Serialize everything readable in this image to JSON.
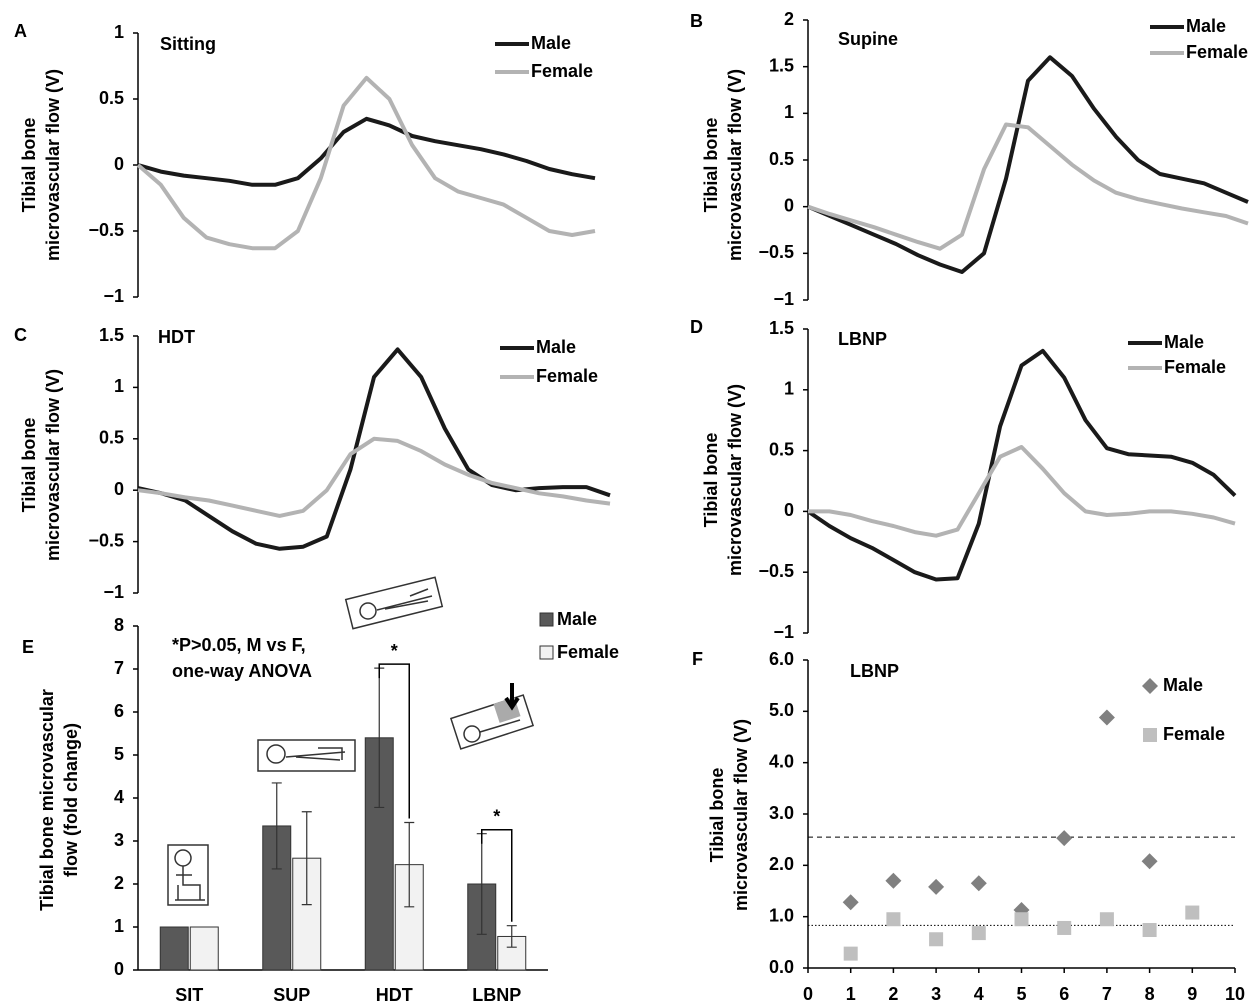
{
  "chart_data": [
    {
      "type": "line",
      "panel": "A",
      "title": "Sitting",
      "ylabel": [
        "Tibial bone",
        "microvascular flow (V)"
      ],
      "ylim": [
        -1,
        1
      ],
      "yticks": [
        {
          "value": -1,
          "label": "−1"
        },
        {
          "value": -0.5,
          "label": "−0.5"
        },
        0,
        0.5,
        1
      ],
      "series": [
        {
          "name": "Male",
          "color": "#1a1a1a",
          "values": [
            0,
            -0.05,
            -0.08,
            -0.1,
            -0.12,
            -0.15,
            -0.15,
            -0.1,
            0.05,
            0.25,
            0.35,
            0.3,
            0.22,
            0.18,
            0.15,
            0.12,
            0.08,
            0.03,
            -0.03,
            -0.07,
            -0.1
          ]
        },
        {
          "name": "Female",
          "color": "#b3b3b3",
          "values": [
            0,
            -0.15,
            -0.4,
            -0.55,
            -0.6,
            -0.63,
            -0.63,
            -0.5,
            -0.1,
            0.45,
            0.66,
            0.5,
            0.15,
            -0.1,
            -0.2,
            -0.25,
            -0.3,
            -0.4,
            -0.5,
            -0.53,
            -0.5
          ]
        }
      ]
    },
    {
      "type": "line",
      "panel": "B",
      "title": "Supine",
      "ylabel": [
        "Tibial bone",
        "microvascular flow (V)"
      ],
      "ylim": [
        -1,
        2
      ],
      "yticks": [
        {
          "value": -1,
          "label": "−1"
        },
        {
          "value": -0.5,
          "label": "−0.5"
        },
        0,
        0.5,
        1,
        1.5,
        2
      ],
      "series": [
        {
          "name": "Male",
          "color": "#1a1a1a",
          "values": [
            0,
            -0.1,
            -0.2,
            -0.3,
            -0.4,
            -0.52,
            -0.62,
            -0.7,
            -0.5,
            0.3,
            1.35,
            1.6,
            1.4,
            1.05,
            0.75,
            0.5,
            0.35,
            0.3,
            0.25,
            0.15,
            0.05
          ]
        },
        {
          "name": "Female",
          "color": "#b3b3b3",
          "values": [
            0,
            -0.08,
            -0.15,
            -0.22,
            -0.3,
            -0.38,
            -0.45,
            -0.3,
            0.4,
            0.88,
            0.85,
            0.65,
            0.45,
            0.28,
            0.15,
            0.08,
            0.03,
            -0.02,
            -0.06,
            -0.1,
            -0.18
          ]
        }
      ]
    },
    {
      "type": "line",
      "panel": "C",
      "title": "HDT",
      "ylabel": [
        "Tibial bone",
        "microvascular flow (V)"
      ],
      "ylim": [
        -1,
        1.5
      ],
      "yticks": [
        {
          "value": -1,
          "label": "−1"
        },
        {
          "value": -0.5,
          "label": "−0.5"
        },
        0,
        0.5,
        1,
        1.5
      ],
      "series": [
        {
          "name": "Male",
          "color": "#1a1a1a",
          "values": [
            0.02,
            -0.03,
            -0.1,
            -0.25,
            -0.4,
            -0.52,
            -0.57,
            -0.55,
            -0.45,
            0.2,
            1.1,
            1.37,
            1.1,
            0.6,
            0.2,
            0.05,
            0,
            0.02,
            0.03,
            0.03,
            -0.05
          ]
        },
        {
          "name": "Female",
          "color": "#b3b3b3",
          "values": [
            0,
            -0.03,
            -0.07,
            -0.1,
            -0.15,
            -0.2,
            -0.25,
            -0.2,
            0,
            0.35,
            0.5,
            0.48,
            0.38,
            0.25,
            0.15,
            0.07,
            0.02,
            -0.03,
            -0.06,
            -0.1,
            -0.13
          ]
        }
      ]
    },
    {
      "type": "line",
      "panel": "D",
      "title": "LBNP",
      "ylabel": [
        "Tibial bone",
        "microvascular flow (V)"
      ],
      "ylim": [
        -1,
        1.5
      ],
      "yticks": [
        {
          "value": -1,
          "label": "−1"
        },
        {
          "value": -0.5,
          "label": "−0.5"
        },
        0,
        0.5,
        1,
        1.5
      ],
      "series": [
        {
          "name": "Male",
          "color": "#1a1a1a",
          "values": [
            0,
            -0.12,
            -0.22,
            -0.3,
            -0.4,
            -0.5,
            -0.56,
            -0.55,
            -0.1,
            0.7,
            1.2,
            1.32,
            1.1,
            0.75,
            0.52,
            0.47,
            0.46,
            0.45,
            0.4,
            0.3,
            0.13
          ]
        },
        {
          "name": "Female",
          "color": "#b3b3b3",
          "values": [
            0,
            0,
            -0.03,
            -0.08,
            -0.12,
            -0.17,
            -0.2,
            -0.15,
            0.15,
            0.45,
            0.53,
            0.35,
            0.15,
            0,
            -0.03,
            -0.02,
            0,
            0,
            -0.02,
            -0.05,
            -0.1
          ]
        }
      ]
    },
    {
      "type": "bar",
      "panel": "E",
      "ylabel": [
        "Tibial bone  microvascular",
        "flow (fold change)"
      ],
      "annotation": [
        "*P>0.05, M vs F,",
        "one-way ANOVA"
      ],
      "categories": [
        "SIT",
        "SUP",
        "HDT",
        "LBNP"
      ],
      "significance_labels": [
        null,
        null,
        "*",
        "*"
      ],
      "ylim": [
        0,
        8
      ],
      "yticks": [
        0,
        1,
        2,
        3,
        4,
        5,
        6,
        7,
        8
      ],
      "series": [
        {
          "name": "Male",
          "color": "#595959",
          "values": [
            1,
            3.35,
            5.4,
            2.0
          ],
          "errors": [
            0,
            1.0,
            1.62,
            1.17
          ]
        },
        {
          "name": "Female",
          "color": "#f2f2f2",
          "values": [
            1,
            2.6,
            2.45,
            0.78
          ],
          "errors": [
            0,
            1.08,
            0.98,
            0.25
          ]
        }
      ]
    },
    {
      "type": "scatter",
      "panel": "F",
      "title": "LBNP",
      "ylabel": [
        "Tibial bone",
        "microvascular flow (V)"
      ],
      "xlim": [
        0,
        10
      ],
      "xticks": [
        0,
        1,
        2,
        3,
        4,
        5,
        6,
        7,
        8,
        9,
        10
      ],
      "ylim": [
        0,
        6
      ],
      "yticks": [
        {
          "value": 0,
          "label": "0.0"
        },
        {
          "value": 1,
          "label": "1.0"
        },
        {
          "value": 2,
          "label": "2.0"
        },
        {
          "value": 3,
          "label": "3.0"
        },
        {
          "value": 4,
          "label": "4.0"
        },
        {
          "value": 5,
          "label": "5.0"
        },
        {
          "value": 6,
          "label": "6.0"
        }
      ],
      "reference_lines": [
        {
          "value": 2.55,
          "style": "dashed"
        },
        {
          "value": 0.83,
          "style": "dotted"
        }
      ],
      "series": [
        {
          "name": "Male",
          "color": "#808080",
          "marker": "diamond",
          "x": [
            1,
            2,
            3,
            4,
            5,
            6,
            7,
            8
          ],
          "values": [
            1.28,
            1.7,
            1.58,
            1.65,
            1.13,
            2.53,
            4.88,
            2.08
          ]
        },
        {
          "name": "Female",
          "color": "#bfbfbf",
          "marker": "square",
          "x": [
            1,
            2,
            3,
            4,
            5,
            6,
            7,
            8,
            9
          ],
          "values": [
            0.28,
            0.95,
            0.56,
            0.68,
            0.95,
            0.78,
            0.95,
            0.74,
            1.08
          ]
        }
      ]
    }
  ]
}
